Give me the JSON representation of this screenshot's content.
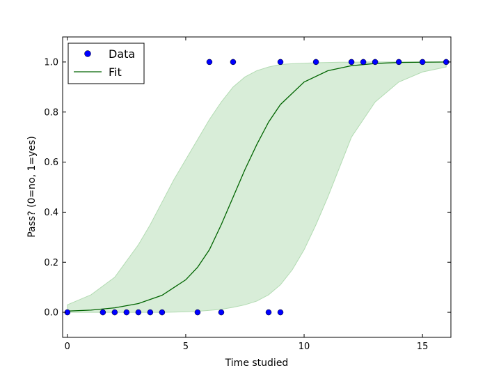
{
  "chart_data": {
    "type": "scatter",
    "title": "",
    "xlabel": "Time studied",
    "ylabel": "Pass? (0=no, 1=yes)",
    "xlim": [
      -0.2,
      16.2
    ],
    "ylim": [
      -0.1,
      1.1
    ],
    "xticks": [
      0,
      5,
      10,
      15
    ],
    "xtick_labels": [
      "0",
      "5",
      "10",
      "15"
    ],
    "yticks": [
      0.0,
      0.2,
      0.4,
      0.6,
      0.8,
      1.0
    ],
    "ytick_labels": [
      "0.0",
      "0.2",
      "0.4",
      "0.6",
      "0.8",
      "1.0"
    ],
    "grid": false,
    "legend_position": "top-left",
    "series": [
      {
        "name": "Data",
        "type": "scatter",
        "color": "#0000ff",
        "x": [
          0,
          1.5,
          2,
          2.5,
          3,
          3.5,
          4,
          5.5,
          6,
          6.5,
          7,
          8.5,
          9,
          9,
          10.5,
          12,
          12.5,
          13,
          14,
          15,
          16
        ],
        "y": [
          0,
          0,
          0,
          0,
          0,
          0,
          0,
          0,
          1,
          0,
          1,
          0,
          1,
          0,
          1,
          1,
          1,
          1,
          1,
          1,
          1
        ]
      },
      {
        "name": "Fit",
        "type": "line",
        "color": "#006400",
        "x": [
          0,
          1,
          2,
          3,
          4,
          5,
          5.5,
          6,
          6.5,
          7,
          7.5,
          8,
          8.5,
          9,
          10,
          11,
          12,
          13,
          14,
          15,
          16
        ],
        "y": [
          0.005,
          0.009,
          0.018,
          0.035,
          0.068,
          0.13,
          0.18,
          0.25,
          0.35,
          0.46,
          0.57,
          0.67,
          0.76,
          0.83,
          0.92,
          0.965,
          0.985,
          0.994,
          0.998,
          0.999,
          1.0
        ]
      }
    ],
    "band": {
      "color": "#b2dbb2",
      "x": [
        0,
        1,
        2,
        3,
        3.5,
        4,
        4.5,
        5,
        5.5,
        6,
        6.5,
        7,
        7.5,
        8,
        8.5,
        9,
        9.5,
        10,
        10.5,
        11,
        11.5,
        12,
        13,
        14,
        15,
        16
      ],
      "upper": [
        0.03,
        0.07,
        0.14,
        0.27,
        0.35,
        0.44,
        0.53,
        0.61,
        0.69,
        0.77,
        0.84,
        0.9,
        0.94,
        0.965,
        0.98,
        0.99,
        0.993,
        0.995,
        0.997,
        0.998,
        0.999,
        0.999,
        1.0,
        1.0,
        1.0,
        1.0
      ],
      "lower": [
        0,
        0,
        0,
        0,
        0,
        0,
        0.001,
        0.002,
        0.004,
        0.008,
        0.012,
        0.02,
        0.03,
        0.045,
        0.07,
        0.11,
        0.17,
        0.25,
        0.35,
        0.46,
        0.58,
        0.7,
        0.84,
        0.92,
        0.96,
        0.98
      ]
    }
  }
}
